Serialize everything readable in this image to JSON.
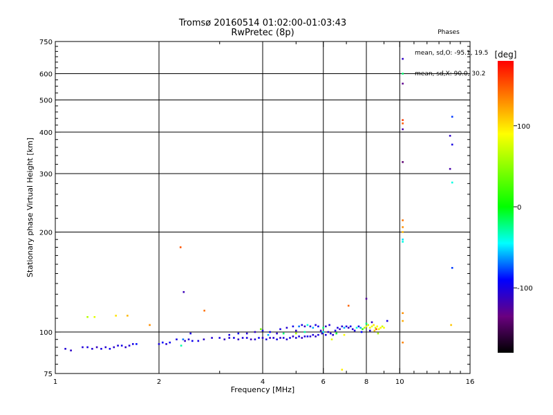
{
  "chart_data": {
    "type": "scatter",
    "title": "Tromsø 20160514 01:02:00-01:03:43",
    "subtitle": "RwPretec (8p)",
    "xlabel": "Frequency [MHz]",
    "ylabel": "Stationary phase Virtual Height [km]",
    "x_scale": "log",
    "y_scale": "log",
    "xlim": [
      1,
      16
    ],
    "ylim": [
      75,
      750
    ],
    "x_ticks": [
      1,
      2,
      4,
      6,
      8,
      10,
      16
    ],
    "y_ticks": [
      75,
      100,
      200,
      300,
      400,
      500,
      600,
      750
    ],
    "grid": true,
    "phase_header": "Phases",
    "phase_stats": [
      {
        "label": "mean, sd,O:",
        "values": "-95.1, 19.5"
      },
      {
        "label": "mean, sd,X:",
        "values": "90.0, 30.2"
      }
    ],
    "colorbar": {
      "label": "[deg]",
      "range": [
        -180,
        180
      ],
      "ticks": [
        100,
        0,
        -100
      ],
      "colors": [
        "#000000",
        "#6a0080",
        "#0000ff",
        "#00ffff",
        "#00ff00",
        "#ffff00",
        "#ff8000",
        "#ff0000"
      ]
    },
    "points": [
      {
        "x": 1.07,
        "y": 89,
        "p": -105
      },
      {
        "x": 1.11,
        "y": 88,
        "p": -110
      },
      {
        "x": 1.2,
        "y": 90,
        "p": -105
      },
      {
        "x": 1.24,
        "y": 90,
        "p": -100
      },
      {
        "x": 1.28,
        "y": 89,
        "p": -105
      },
      {
        "x": 1.32,
        "y": 90,
        "p": -112
      },
      {
        "x": 1.36,
        "y": 89,
        "p": -100
      },
      {
        "x": 1.4,
        "y": 90,
        "p": -106
      },
      {
        "x": 1.44,
        "y": 89,
        "p": -95
      },
      {
        "x": 1.48,
        "y": 90,
        "p": -108
      },
      {
        "x": 1.52,
        "y": 91,
        "p": -102
      },
      {
        "x": 1.56,
        "y": 91,
        "p": -98
      },
      {
        "x": 1.6,
        "y": 90,
        "p": -110
      },
      {
        "x": 1.64,
        "y": 91,
        "p": -104
      },
      {
        "x": 1.68,
        "y": 92,
        "p": -100
      },
      {
        "x": 1.72,
        "y": 92,
        "p": -88
      },
      {
        "x": 1.24,
        "y": 111,
        "p": 65
      },
      {
        "x": 1.3,
        "y": 111,
        "p": 80
      },
      {
        "x": 1.5,
        "y": 112,
        "p": 100
      },
      {
        "x": 1.62,
        "y": 112,
        "p": 115
      },
      {
        "x": 1.88,
        "y": 105,
        "p": 130
      },
      {
        "x": 2.0,
        "y": 92,
        "p": -100
      },
      {
        "x": 2.05,
        "y": 93,
        "p": -90
      },
      {
        "x": 2.1,
        "y": 92,
        "p": -105
      },
      {
        "x": 2.15,
        "y": 93,
        "p": -95
      },
      {
        "x": 2.25,
        "y": 95,
        "p": -100
      },
      {
        "x": 2.32,
        "y": 91,
        "p": -30
      },
      {
        "x": 2.38,
        "y": 94,
        "p": -110
      },
      {
        "x": 2.44,
        "y": 95,
        "p": -105
      },
      {
        "x": 2.5,
        "y": 94,
        "p": -95
      },
      {
        "x": 2.35,
        "y": 95,
        "p": -70
      },
      {
        "x": 2.47,
        "y": 99,
        "p": -100
      },
      {
        "x": 2.31,
        "y": 180,
        "p": 150
      },
      {
        "x": 2.36,
        "y": 132,
        "p": -115
      },
      {
        "x": 2.71,
        "y": 116,
        "p": 140
      },
      {
        "x": 2.6,
        "y": 94,
        "p": -100
      },
      {
        "x": 2.7,
        "y": 95,
        "p": -110
      },
      {
        "x": 2.85,
        "y": 96,
        "p": -105
      },
      {
        "x": 3.0,
        "y": 96,
        "p": -100
      },
      {
        "x": 3.1,
        "y": 95,
        "p": -112
      },
      {
        "x": 3.2,
        "y": 96,
        "p": -105
      },
      {
        "x": 3.3,
        "y": 96,
        "p": -98
      },
      {
        "x": 3.4,
        "y": 95,
        "p": -110
      },
      {
        "x": 3.5,
        "y": 96,
        "p": -103
      },
      {
        "x": 3.6,
        "y": 96,
        "p": -100
      },
      {
        "x": 3.7,
        "y": 95,
        "p": -115
      },
      {
        "x": 3.8,
        "y": 95,
        "p": -105
      },
      {
        "x": 3.9,
        "y": 96,
        "p": -95
      },
      {
        "x": 4.0,
        "y": 96,
        "p": -108
      },
      {
        "x": 4.1,
        "y": 95,
        "p": -100
      },
      {
        "x": 4.2,
        "y": 96,
        "p": -112
      },
      {
        "x": 4.3,
        "y": 96,
        "p": -104
      },
      {
        "x": 4.4,
        "y": 95,
        "p": -99
      },
      {
        "x": 4.5,
        "y": 96,
        "p": -110
      },
      {
        "x": 4.6,
        "y": 96,
        "p": -102
      },
      {
        "x": 4.7,
        "y": 95,
        "p": -106
      },
      {
        "x": 4.8,
        "y": 96,
        "p": -98
      },
      {
        "x": 4.9,
        "y": 97,
        "p": -110
      },
      {
        "x": 5.0,
        "y": 96,
        "p": -104
      },
      {
        "x": 5.1,
        "y": 97,
        "p": -100
      },
      {
        "x": 5.2,
        "y": 96,
        "p": -112
      },
      {
        "x": 5.3,
        "y": 97,
        "p": -105
      },
      {
        "x": 5.4,
        "y": 97,
        "p": -99
      },
      {
        "x": 5.5,
        "y": 97,
        "p": -108
      },
      {
        "x": 5.6,
        "y": 98,
        "p": -102
      },
      {
        "x": 5.7,
        "y": 97,
        "p": -110
      },
      {
        "x": 5.8,
        "y": 98,
        "p": -100
      },
      {
        "x": 3.2,
        "y": 98,
        "p": -100
      },
      {
        "x": 3.4,
        "y": 99,
        "p": -95
      },
      {
        "x": 3.6,
        "y": 99,
        "p": -105
      },
      {
        "x": 3.8,
        "y": 100,
        "p": -110
      },
      {
        "x": 4.0,
        "y": 101,
        "p": -100
      },
      {
        "x": 4.2,
        "y": 100,
        "p": -95
      },
      {
        "x": 4.4,
        "y": 99,
        "p": -108
      },
      {
        "x": 3.95,
        "y": 102,
        "p": 40
      },
      {
        "x": 4.15,
        "y": 98,
        "p": -60
      },
      {
        "x": 4.5,
        "y": 102,
        "p": -100
      },
      {
        "x": 4.7,
        "y": 103,
        "p": -105
      },
      {
        "x": 4.9,
        "y": 104,
        "p": -98
      },
      {
        "x": 5.0,
        "y": 101,
        "p": -110
      },
      {
        "x": 5.1,
        "y": 104,
        "p": -70
      },
      {
        "x": 5.2,
        "y": 105,
        "p": -100
      },
      {
        "x": 5.3,
        "y": 104,
        "p": -112
      },
      {
        "x": 5.4,
        "y": 105,
        "p": -40
      },
      {
        "x": 5.5,
        "y": 104,
        "p": -105
      },
      {
        "x": 5.6,
        "y": 103,
        "p": -60
      },
      {
        "x": 5.7,
        "y": 105,
        "p": -100
      },
      {
        "x": 5.8,
        "y": 104,
        "p": -95
      },
      {
        "x": 5.9,
        "y": 101,
        "p": -108
      },
      {
        "x": 6.0,
        "y": 100,
        "p": -50
      },
      {
        "x": 4.6,
        "y": 99,
        "p": -20
      },
      {
        "x": 5.0,
        "y": 99,
        "p": 60
      },
      {
        "x": 5.3,
        "y": 100,
        "p": -30
      },
      {
        "x": 5.95,
        "y": 99,
        "p": -105
      },
      {
        "x": 6.1,
        "y": 98,
        "p": -100
      },
      {
        "x": 6.2,
        "y": 100,
        "p": -110
      },
      {
        "x": 6.3,
        "y": 99,
        "p": -102
      },
      {
        "x": 6.4,
        "y": 98,
        "p": -108
      },
      {
        "x": 6.5,
        "y": 101,
        "p": -95
      },
      {
        "x": 6.6,
        "y": 103,
        "p": -100
      },
      {
        "x": 6.7,
        "y": 102,
        "p": -110
      },
      {
        "x": 6.8,
        "y": 104,
        "p": -105
      },
      {
        "x": 6.9,
        "y": 103,
        "p": -60
      },
      {
        "x": 7.0,
        "y": 104,
        "p": -100
      },
      {
        "x": 7.1,
        "y": 103,
        "p": -112
      },
      {
        "x": 7.2,
        "y": 104,
        "p": -98
      },
      {
        "x": 7.3,
        "y": 102,
        "p": -106
      },
      {
        "x": 7.4,
        "y": 101,
        "p": -100
      },
      {
        "x": 7.5,
        "y": 103,
        "p": -40
      },
      {
        "x": 6.1,
        "y": 104,
        "p": -110
      },
      {
        "x": 6.25,
        "y": 105,
        "p": -105
      },
      {
        "x": 6.0,
        "y": 103,
        "p": -20
      },
      {
        "x": 6.55,
        "y": 99,
        "p": -10
      },
      {
        "x": 6.35,
        "y": 95,
        "p": 80
      },
      {
        "x": 6.9,
        "y": 98,
        "p": 90
      },
      {
        "x": 6.8,
        "y": 77,
        "p": 95
      },
      {
        "x": 7.1,
        "y": 120,
        "p": 145
      },
      {
        "x": 7.6,
        "y": 104,
        "p": -100
      },
      {
        "x": 7.7,
        "y": 103,
        "p": -60
      },
      {
        "x": 7.8,
        "y": 102,
        "p": 10
      },
      {
        "x": 7.9,
        "y": 103,
        "p": 60
      },
      {
        "x": 8.0,
        "y": 104,
        "p": 85
      },
      {
        "x": 8.1,
        "y": 105,
        "p": 70
      },
      {
        "x": 8.2,
        "y": 103,
        "p": 95
      },
      {
        "x": 8.3,
        "y": 104,
        "p": 80
      },
      {
        "x": 8.4,
        "y": 105,
        "p": 100
      },
      {
        "x": 8.5,
        "y": 103,
        "p": 75
      },
      {
        "x": 8.6,
        "y": 104,
        "p": 90
      },
      {
        "x": 8.7,
        "y": 102,
        "p": 85
      },
      {
        "x": 8.8,
        "y": 103,
        "p": 95
      },
      {
        "x": 8.9,
        "y": 104,
        "p": 70
      },
      {
        "x": 9.0,
        "y": 103,
        "p": 88
      },
      {
        "x": 8.45,
        "y": 101,
        "p": 110
      },
      {
        "x": 8.65,
        "y": 99,
        "p": 60
      },
      {
        "x": 7.75,
        "y": 100,
        "p": -90
      },
      {
        "x": 8.2,
        "y": 101,
        "p": -105
      },
      {
        "x": 8.0,
        "y": 106,
        "p": -20
      },
      {
        "x": 8.0,
        "y": 126,
        "p": -125
      },
      {
        "x": 8.3,
        "y": 107,
        "p": -110
      },
      {
        "x": 8.55,
        "y": 102,
        "p": 150
      },
      {
        "x": 9.2,
        "y": 108,
        "p": -100
      },
      {
        "x": 10.2,
        "y": 665,
        "p": -110
      },
      {
        "x": 10.2,
        "y": 600,
        "p": -20
      },
      {
        "x": 10.2,
        "y": 560,
        "p": -130
      },
      {
        "x": 10.2,
        "y": 435,
        "p": 160
      },
      {
        "x": 10.2,
        "y": 425,
        "p": 150
      },
      {
        "x": 10.2,
        "y": 408,
        "p": -120
      },
      {
        "x": 10.2,
        "y": 325,
        "p": -140
      },
      {
        "x": 10.2,
        "y": 217,
        "p": 140
      },
      {
        "x": 10.2,
        "y": 207,
        "p": 130
      },
      {
        "x": 10.2,
        "y": 200,
        "p": 115
      },
      {
        "x": 10.2,
        "y": 190,
        "p": -50
      },
      {
        "x": 10.2,
        "y": 187,
        "p": -40
      },
      {
        "x": 10.2,
        "y": 114,
        "p": 130
      },
      {
        "x": 10.2,
        "y": 108,
        "p": 120
      },
      {
        "x": 10.2,
        "y": 93,
        "p": 135
      },
      {
        "x": 14.2,
        "y": 445,
        "p": -80
      },
      {
        "x": 14.0,
        "y": 390,
        "p": -110
      },
      {
        "x": 14.2,
        "y": 367,
        "p": -100
      },
      {
        "x": 14.0,
        "y": 310,
        "p": -120
      },
      {
        "x": 14.2,
        "y": 282,
        "p": -40
      },
      {
        "x": 14.2,
        "y": 156,
        "p": -80
      },
      {
        "x": 14.1,
        "y": 105,
        "p": 110
      }
    ]
  }
}
